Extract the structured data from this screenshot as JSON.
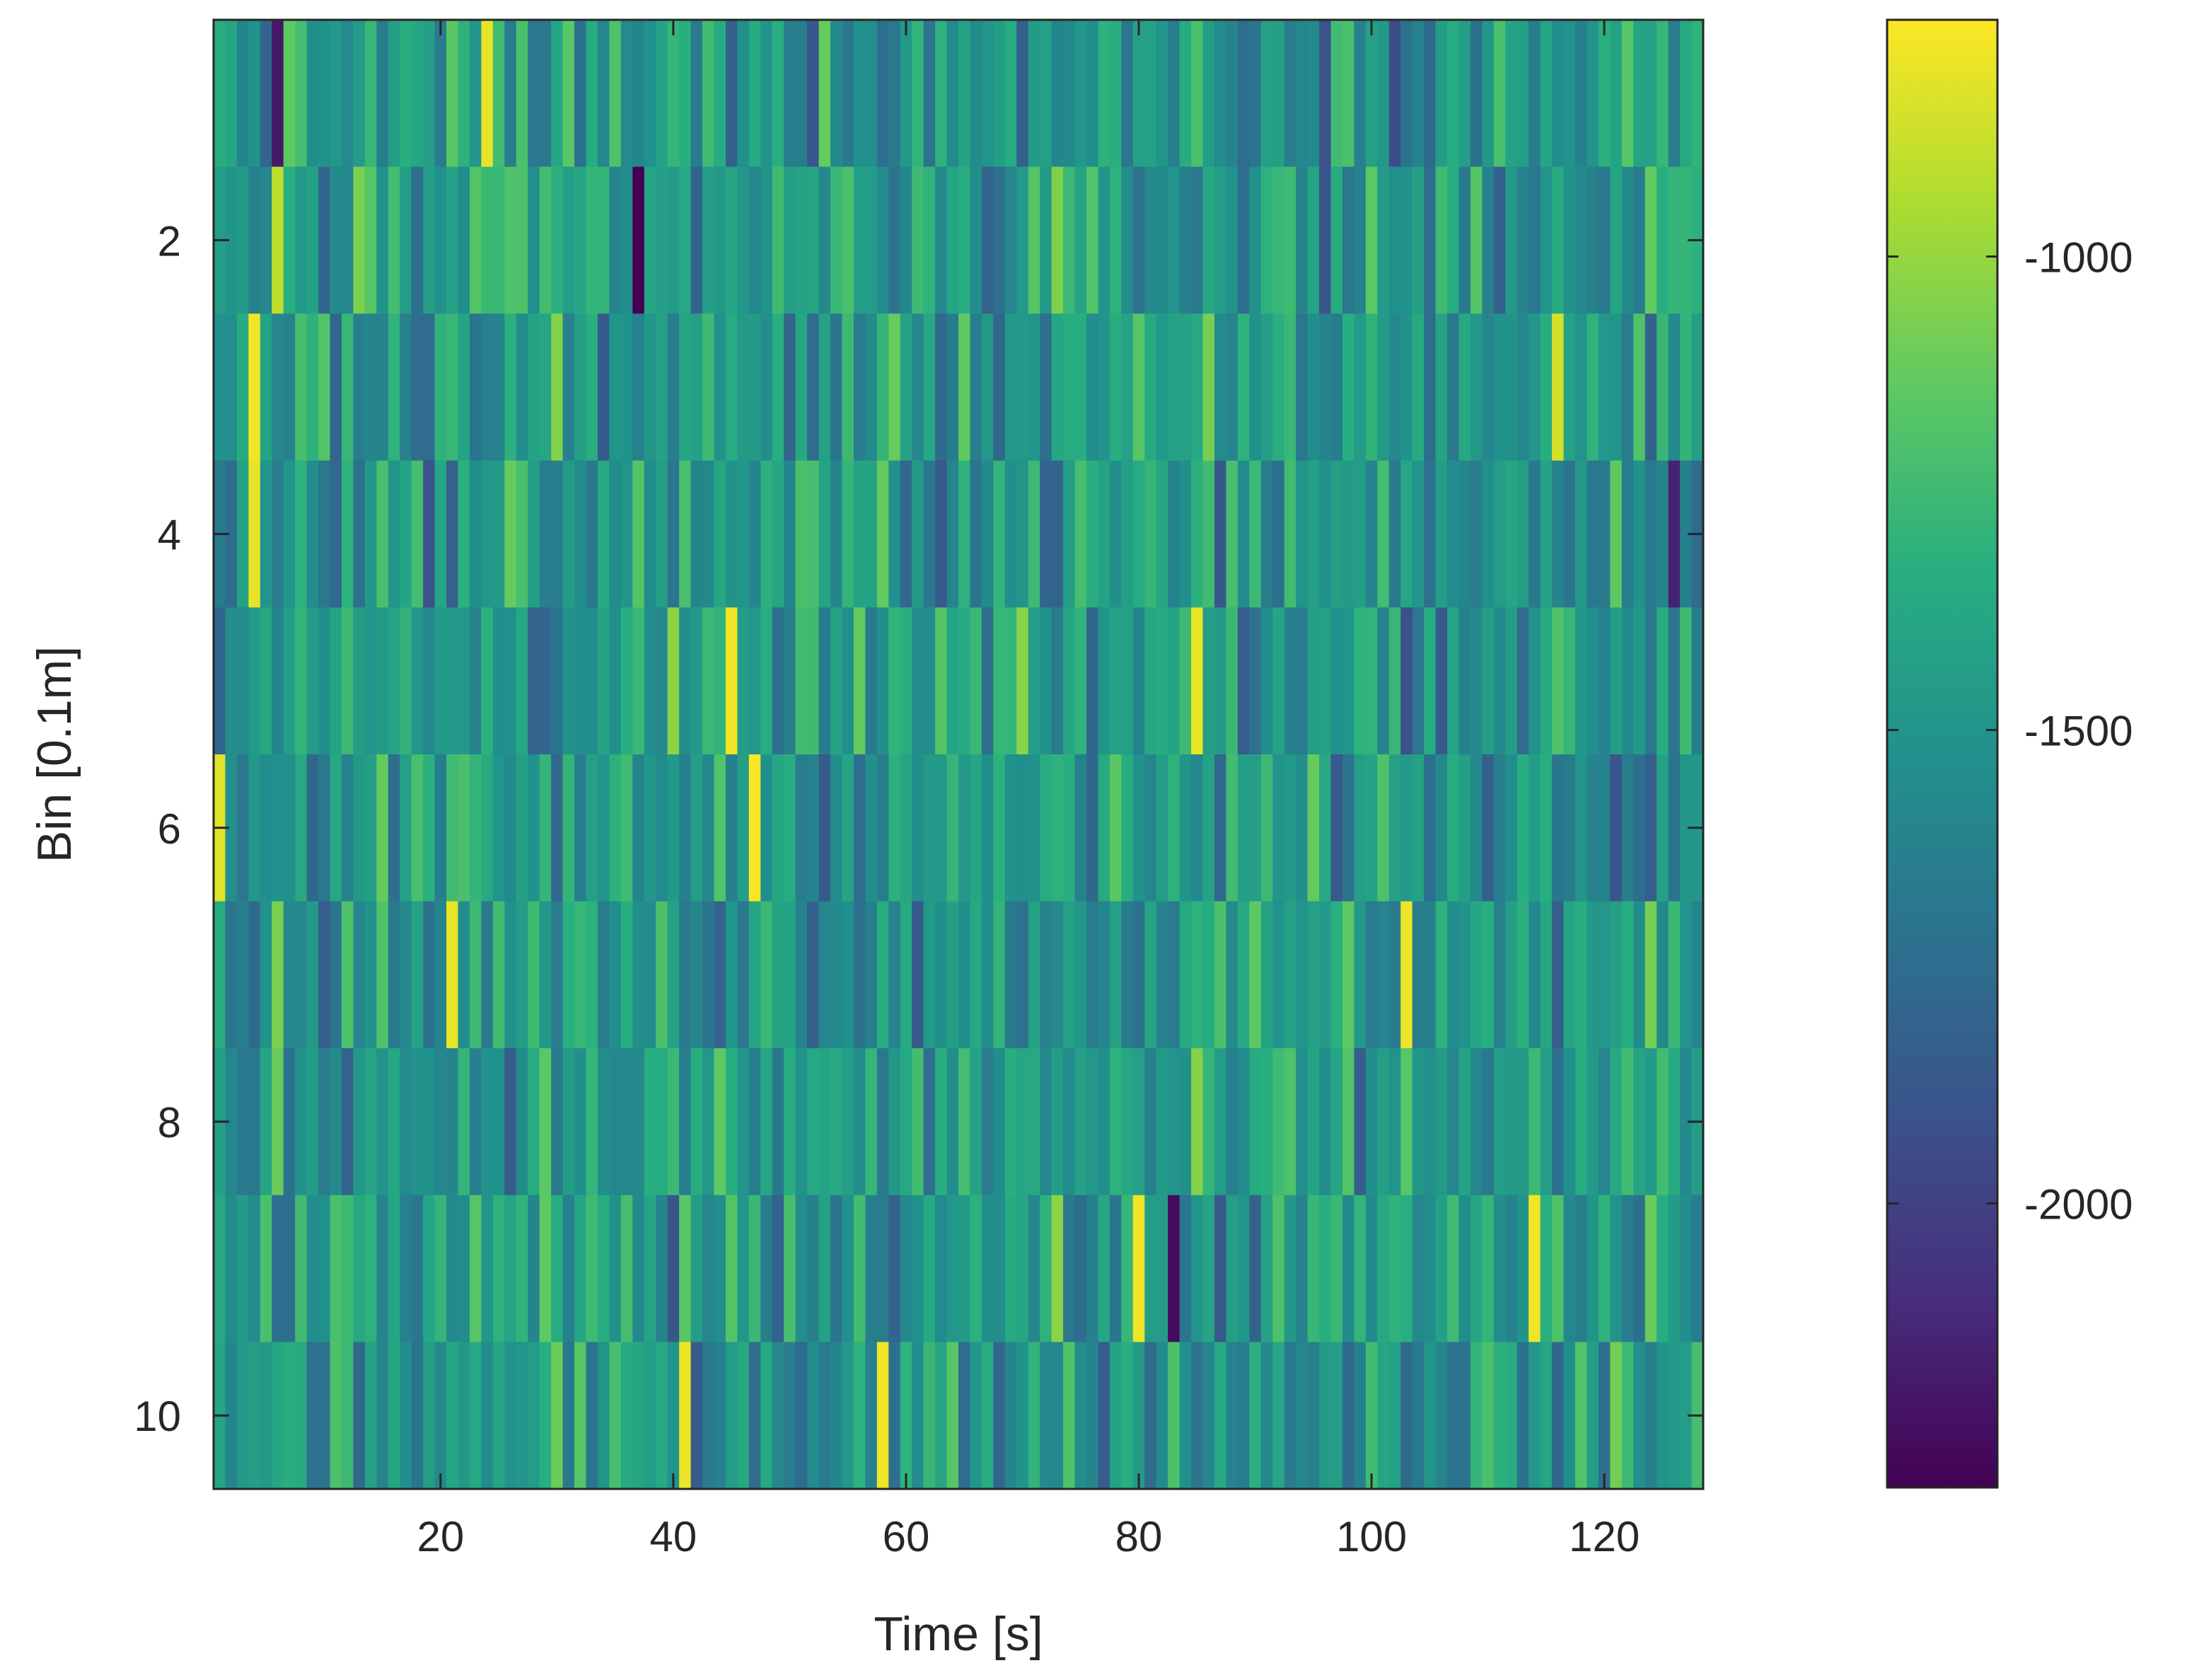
{
  "chart_data": {
    "type": "heatmap",
    "title": "",
    "xlabel": "Time [s]",
    "ylabel": "Bin [0.1m]",
    "x_range": [
      1,
      128
    ],
    "y_range": [
      1,
      10
    ],
    "xlim": [
      0.5,
      128.5
    ],
    "ylim": [
      0.5,
      10.5
    ],
    "y_direction": "reversed",
    "x_ticks": [
      20,
      40,
      60,
      80,
      100,
      120
    ],
    "x_tick_labels": [
      "20",
      "40",
      "60",
      "80",
      "100",
      "120"
    ],
    "y_ticks": [
      2,
      4,
      6,
      8,
      10
    ],
    "y_tick_labels": [
      "2",
      "4",
      "6",
      "8",
      "10"
    ],
    "colormap": "viridis",
    "colorbar": {
      "placement": "right",
      "range": [
        -2300,
        -750
      ],
      "ticks": [
        -1000,
        -1500,
        -2000
      ],
      "tick_labels": [
        "-1000",
        "-1500",
        "-2000"
      ]
    },
    "grid": false,
    "values_note": "10 bins x 128 time samples, values approx -2300 to -750 (mostly -1900 to -1000); cell values are random-looking noise estimated from colors",
    "highlight_cells": [
      {
        "bin": 1,
        "time": 6,
        "value": -2200
      },
      {
        "bin": 1,
        "time": 24,
        "value": -800
      },
      {
        "bin": 2,
        "time": 37,
        "value": -2300
      },
      {
        "bin": 2,
        "time": 6,
        "value": -900
      },
      {
        "bin": 3,
        "time": 4,
        "value": -780
      },
      {
        "bin": 3,
        "time": 116,
        "value": -850
      },
      {
        "bin": 4,
        "time": 4,
        "value": -800
      },
      {
        "bin": 4,
        "time": 126,
        "value": -2150
      },
      {
        "bin": 5,
        "time": 45,
        "value": -780
      },
      {
        "bin": 5,
        "time": 85,
        "value": -800
      },
      {
        "bin": 6,
        "time": 47,
        "value": -760
      },
      {
        "bin": 6,
        "time": 1,
        "value": -820
      },
      {
        "bin": 7,
        "time": 21,
        "value": -800
      },
      {
        "bin": 7,
        "time": 103,
        "value": -790
      },
      {
        "bin": 9,
        "time": 80,
        "value": -780
      },
      {
        "bin": 9,
        "time": 83,
        "value": -2250
      },
      {
        "bin": 9,
        "time": 114,
        "value": -780
      },
      {
        "bin": 10,
        "time": 41,
        "value": -790
      },
      {
        "bin": 10,
        "time": 58,
        "value": -780
      }
    ]
  }
}
